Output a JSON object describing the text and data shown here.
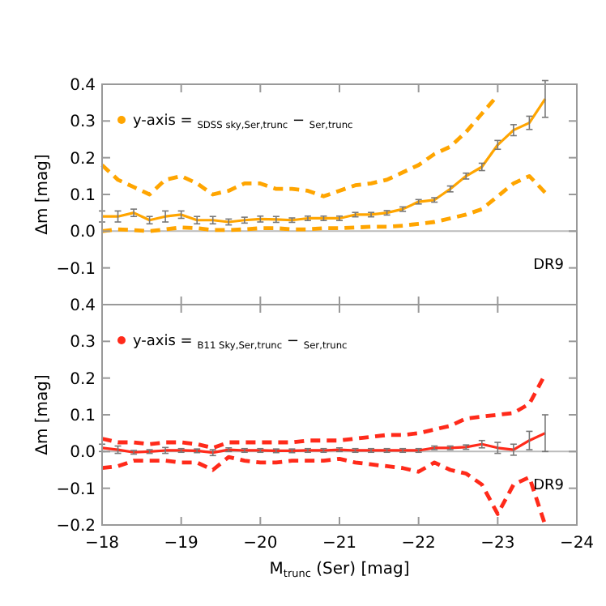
{
  "chart_data": [
    {
      "type": "line",
      "x": [
        -18,
        -18.2,
        -18.4,
        -18.6,
        -18.8,
        -19,
        -19.2,
        -19.4,
        -19.6,
        -19.8,
        -20,
        -20.2,
        -20.4,
        -20.6,
        -20.8,
        -21,
        -21.2,
        -21.4,
        -21.6,
        -21.8,
        -22,
        -22.2,
        -22.4,
        -22.6,
        -22.8,
        -23,
        -23.2,
        -23.4,
        -23.6
      ],
      "xlim": [
        -18,
        -24
      ],
      "xticks": [
        -19,
        -20,
        -21,
        -22,
        -23
      ],
      "ylim": [
        -0.2,
        0.4
      ],
      "yticks": [
        -0.1,
        {
          "value": 0,
          "label": "0.0"
        },
        0.1,
        0.2,
        0.3,
        0.4
      ],
      "ylabel": "Δm  [mag]",
      "tick_labels": "y",
      "legend": "top left",
      "annotations": [
        "DR9"
      ],
      "ref_lines": [
        {
          "axis": "y",
          "value": 0,
          "color": "#bbbbbb"
        }
      ],
      "series": [
        {
          "name": "y-axis = $_{SDSS sky,Ser,trunc}$ − $_{Ser,trunc}$",
          "color": "#ffa500",
          "line_style": "solid",
          "values": [
            0.04,
            0.04,
            0.05,
            0.03,
            0.04,
            0.045,
            0.03,
            0.03,
            0.025,
            0.03,
            0.033,
            0.032,
            0.03,
            0.035,
            0.035,
            0.035,
            0.045,
            0.045,
            0.05,
            0.06,
            0.08,
            0.085,
            0.115,
            0.15,
            0.175,
            0.235,
            0.275,
            0.295,
            0.36
          ],
          "errors": [
            0.015,
            0.015,
            0.01,
            0.01,
            0.015,
            0.01,
            0.01,
            0.01,
            0.008,
            0.008,
            0.008,
            0.008,
            0.006,
            0.006,
            0.006,
            0.006,
            0.006,
            0.006,
            0.006,
            0.006,
            0.006,
            0.006,
            0.008,
            0.008,
            0.01,
            0.012,
            0.015,
            0.018,
            0.05
          ]
        },
        {
          "color": "#ffa500",
          "line_style": "dashed",
          "values": [
            0.18,
            0.14,
            0.12,
            0.1,
            0.14,
            0.15,
            0.13,
            0.1,
            0.11,
            0.13,
            0.13,
            0.115,
            0.115,
            0.11,
            0.095,
            0.11,
            0.125,
            0.13,
            0.14,
            0.16,
            0.18,
            0.21,
            0.23,
            0.27,
            0.32,
            0.37,
            null,
            null,
            null
          ]
        },
        {
          "color": "#ffa500",
          "line_style": "dashed",
          "values": [
            0.0,
            0.005,
            0.003,
            0.0,
            0.005,
            0.01,
            0.008,
            0.003,
            0.003,
            0.005,
            0.008,
            0.008,
            0.005,
            0.005,
            0.008,
            0.008,
            0.01,
            0.012,
            0.012,
            0.015,
            0.02,
            0.025,
            0.035,
            0.045,
            0.06,
            0.095,
            0.13,
            0.15,
            0.105
          ]
        }
      ]
    },
    {
      "type": "line",
      "x": [
        -18,
        -18.2,
        -18.4,
        -18.6,
        -18.8,
        -19,
        -19.2,
        -19.4,
        -19.6,
        -19.8,
        -20,
        -20.2,
        -20.4,
        -20.6,
        -20.8,
        -21,
        -21.2,
        -21.4,
        -21.6,
        -21.8,
        -22,
        -22.2,
        -22.4,
        -22.6,
        -22.8,
        -23,
        -23.2,
        -23.4,
        -23.6
      ],
      "xlim": [
        -18,
        -24
      ],
      "xticks": [
        -18,
        -19,
        -20,
        -21,
        -22,
        -23,
        -24
      ],
      "ylim": [
        -0.2,
        0.4
      ],
      "yticks": [
        -0.2,
        -0.1,
        {
          "value": 0,
          "label": "0.0"
        },
        0.1,
        0.2,
        0.3,
        0.4
      ],
      "ylabel": "Δm  [mag]",
      "xlabel": "M$_{trunc}$  (Ser)  [mag]",
      "legend": "top left",
      "annotations": [
        "DR9"
      ],
      "ref_lines": [
        {
          "axis": "y",
          "value": 0,
          "color": "#bbbbbb"
        }
      ],
      "series": [
        {
          "name": "y-axis = $_{B11 Sky,Ser,trunc}$ − $_{Ser,trunc}$",
          "color": "#ff2a1a",
          "line_style": "solid",
          "values": [
            0.01,
            0.005,
            -0.002,
            0.0,
            0.003,
            0.003,
            0.002,
            -0.003,
            0.005,
            0.003,
            0.003,
            0.002,
            0.002,
            0.003,
            0.003,
            0.005,
            0.003,
            0.003,
            0.003,
            0.003,
            0.003,
            0.01,
            0.01,
            0.012,
            0.02,
            0.01,
            0.005,
            0.03,
            0.05
          ],
          "errors": [
            0.01,
            0.01,
            0.005,
            0.005,
            0.008,
            0.005,
            0.005,
            0.008,
            0.005,
            0.005,
            0.005,
            0.005,
            0.005,
            0.005,
            0.005,
            0.005,
            0.005,
            0.005,
            0.005,
            0.005,
            0.005,
            0.005,
            0.005,
            0.006,
            0.01,
            0.015,
            0.015,
            0.025,
            0.05
          ]
        },
        {
          "color": "#ff2a1a",
          "line_style": "dashed",
          "values": [
            0.035,
            0.025,
            0.025,
            0.02,
            0.025,
            0.025,
            0.02,
            0.01,
            0.025,
            0.025,
            0.025,
            0.025,
            0.025,
            0.03,
            0.03,
            0.03,
            0.035,
            0.04,
            0.045,
            0.045,
            0.05,
            0.06,
            0.07,
            0.09,
            0.095,
            0.1,
            0.105,
            0.13,
            0.21
          ]
        },
        {
          "color": "#ff2a1a",
          "line_style": "dashed",
          "values": [
            -0.045,
            -0.04,
            -0.025,
            -0.025,
            -0.025,
            -0.03,
            -0.03,
            -0.05,
            -0.015,
            -0.025,
            -0.03,
            -0.03,
            -0.025,
            -0.025,
            -0.025,
            -0.02,
            -0.03,
            -0.035,
            -0.04,
            -0.045,
            -0.055,
            -0.03,
            -0.05,
            -0.06,
            -0.09,
            -0.17,
            -0.09,
            -0.07,
            -0.2
          ]
        }
      ]
    }
  ]
}
